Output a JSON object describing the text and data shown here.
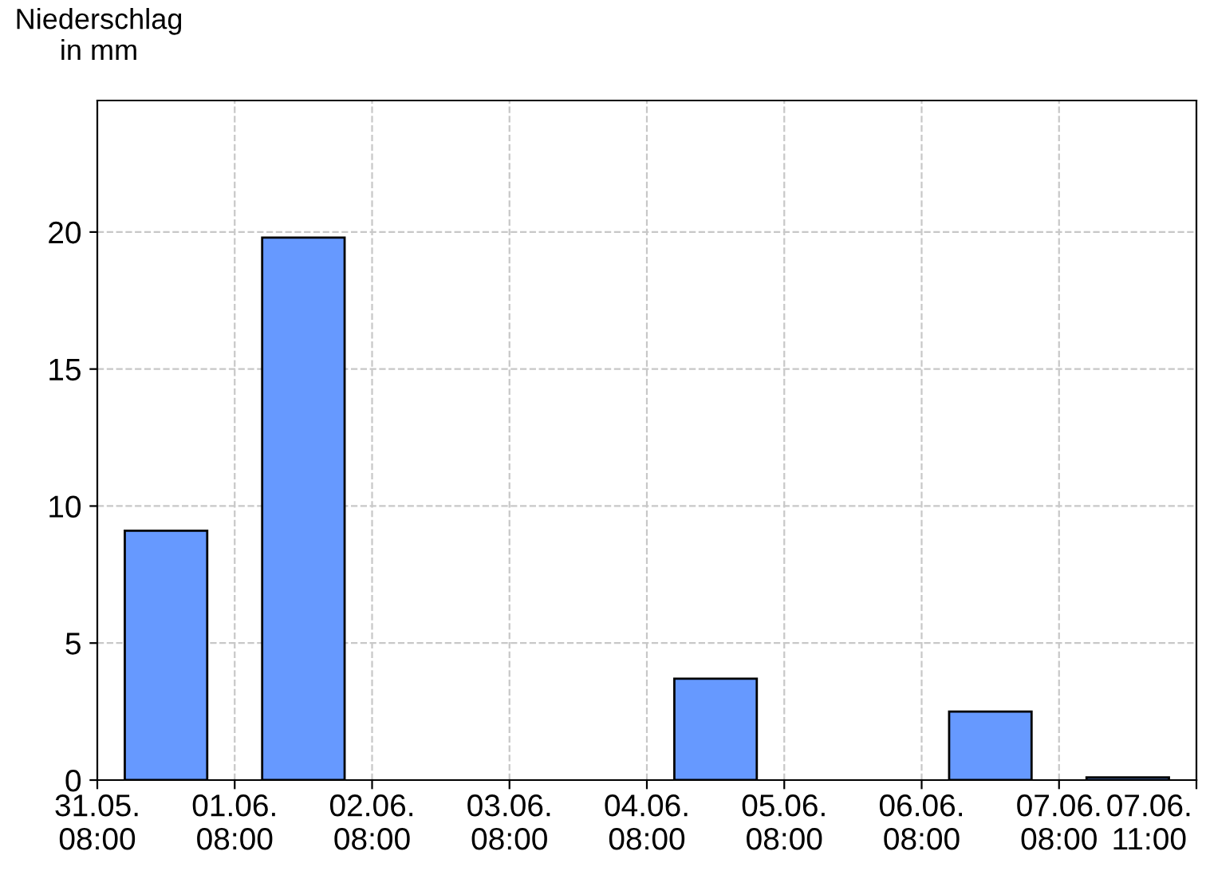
{
  "chart_data": {
    "type": "bar",
    "ylabel": "Niederschlag\nin mm",
    "categories": [
      null,
      null,
      null,
      null,
      null,
      null,
      null,
      null
    ],
    "values": [
      9.1,
      19.8,
      null,
      null,
      3.7,
      null,
      2.5,
      0.1
    ],
    "color": "#6699ff",
    "annotations": [
      "31.05.\n08:00",
      "01.06.\n08:00",
      "02.06.\n08:00",
      "03.06.\n08:00",
      "04.06.\n08:00",
      "05.06.\n08:00",
      "06.06.\n08:00",
      "07.06.\n08:00",
      "07.06.\n11:00"
    ],
    "ylim": [
      0,
      24.8
    ],
    "yticks": [
      0,
      5,
      10,
      15,
      20
    ],
    "grid": true
  }
}
